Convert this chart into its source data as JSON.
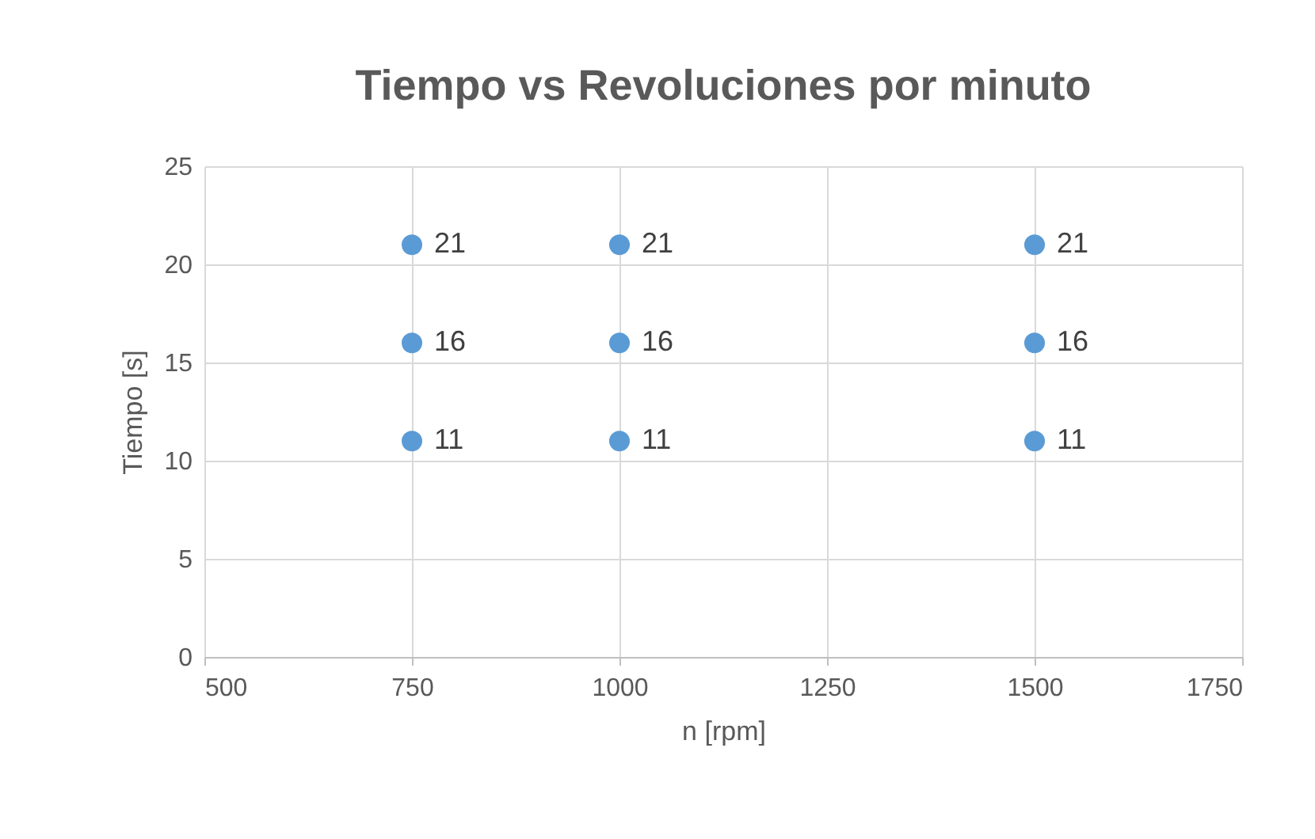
{
  "chart_data": {
    "type": "scatter",
    "title": "Tiempo vs Revoluciones por minuto",
    "xlabel": "n [rpm]",
    "ylabel": "Tiempo [s]",
    "x": [
      750,
      750,
      750,
      1000,
      1000,
      1000,
      1500,
      1500,
      1500
    ],
    "values": [
      21,
      16,
      11,
      21,
      16,
      11,
      21,
      16,
      11
    ],
    "color": "#5b9bd5",
    "marker": "circle",
    "data_labels": true,
    "grid": true,
    "xlim": [
      500,
      1750
    ],
    "xticks": [
      500,
      750,
      1000,
      1250,
      1500,
      1750
    ],
    "ylim": [
      0,
      25
    ],
    "yticks": [
      0,
      5,
      10,
      15,
      20,
      25
    ]
  }
}
